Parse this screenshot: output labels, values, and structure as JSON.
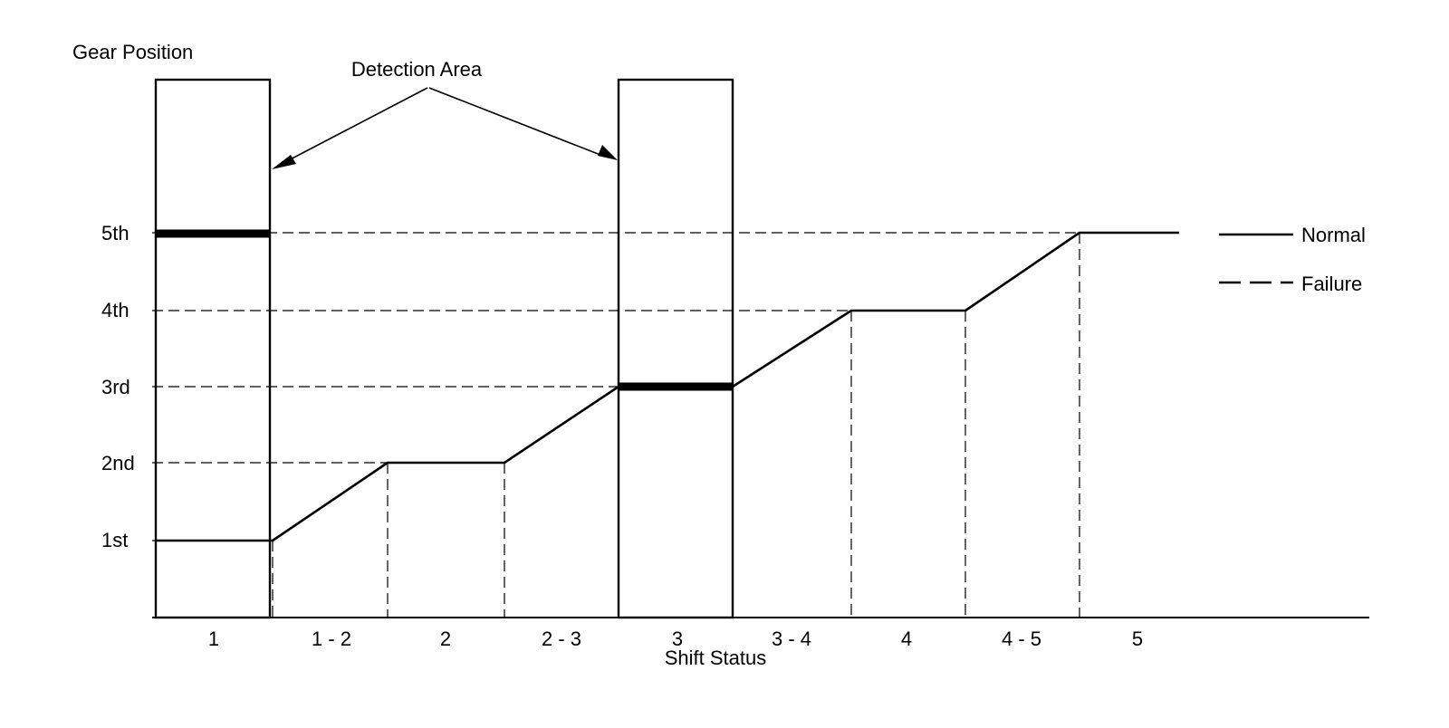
{
  "title_y_axis": "Gear Position",
  "title_x_axis": "Shift Status",
  "detection_label": "Detection Area",
  "gear_levels": [
    "1st",
    "2nd",
    "3rd",
    "4th",
    "5th"
  ],
  "shift_states": [
    "1",
    "1 - 2",
    "2",
    "2 - 3",
    "3",
    "3 - 4",
    "4",
    "4 - 5",
    "5"
  ],
  "legend": {
    "normal": "Normal",
    "failure": "Failure"
  },
  "chart_data": {
    "type": "line",
    "xlabel": "Shift Status",
    "ylabel": "Gear Position",
    "categories": [
      "1",
      "1 - 2",
      "2",
      "2 - 3",
      "3",
      "3 - 4",
      "4",
      "4 - 5",
      "5"
    ],
    "y_ticks": [
      "1st",
      "2nd",
      "3rd",
      "4th",
      "5th"
    ],
    "series": [
      {
        "name": "Normal",
        "points": [
          {
            "x": "1",
            "y": 1
          },
          {
            "x": "1 - 2",
            "y": 1
          },
          {
            "x": "2",
            "y": 2
          },
          {
            "x": "2",
            "y": 2
          },
          {
            "x": "2 - 3",
            "y": 2
          },
          {
            "x": "3",
            "y": 3
          },
          {
            "x": "3",
            "y": 3
          },
          {
            "x": "3 - 4",
            "y": 3
          },
          {
            "x": "4",
            "y": 4
          },
          {
            "x": "4",
            "y": 4
          },
          {
            "x": "4 - 5",
            "y": 4
          },
          {
            "x": "5",
            "y": 5
          },
          {
            "x": "5",
            "y": 5
          }
        ]
      }
    ],
    "detection_areas": [
      {
        "shift_status": "1",
        "highlighted_gear": "5th"
      },
      {
        "shift_status": "3",
        "highlighted_gear": "3rd"
      }
    ]
  }
}
